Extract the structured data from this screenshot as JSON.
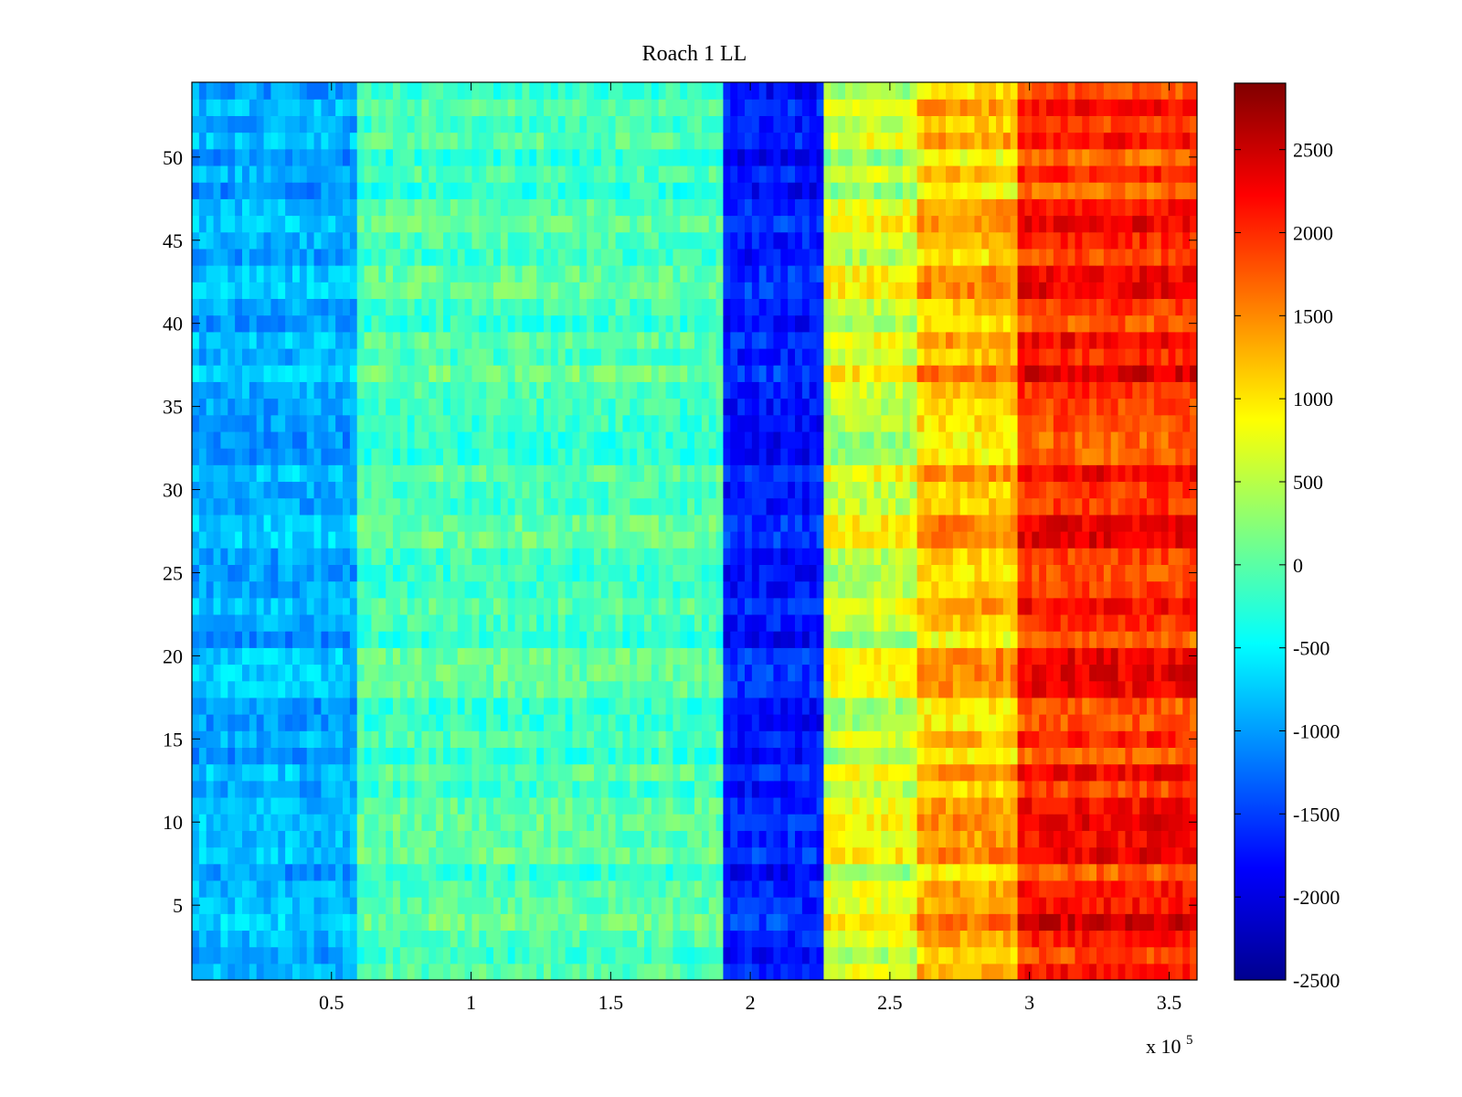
{
  "chart_data": {
    "type": "heatmap",
    "title": "Roach 1 LL",
    "xlabel": "",
    "ylabel": "",
    "x_multiplier_label": "x 10",
    "x_multiplier_exponent": "5",
    "xlim": [
      0,
      3.6
    ],
    "ylim": [
      0.5,
      54.5
    ],
    "x_ticks": [
      0.5,
      1,
      1.5,
      2,
      2.5,
      3,
      3.5
    ],
    "x_tick_labels": [
      "0.5",
      "1",
      "1.5",
      "2",
      "2.5",
      "3",
      "3.5"
    ],
    "y_ticks": [
      5,
      10,
      15,
      20,
      25,
      30,
      35,
      40,
      45,
      50
    ],
    "y_tick_labels": [
      "5",
      "10",
      "15",
      "20",
      "25",
      "30",
      "35",
      "40",
      "45",
      "50"
    ],
    "rows": 54,
    "colorbar": {
      "colormap": "jet",
      "clim": [
        -2500,
        2900
      ],
      "ticks": [
        -2500,
        -2000,
        -1500,
        -1000,
        -500,
        0,
        500,
        1000,
        1500,
        2000,
        2500
      ],
      "tick_labels": [
        "-2500",
        "-2000",
        "-1500",
        "-1000",
        "-500",
        "0",
        "500",
        "1000",
        "1500",
        "2000",
        "2500"
      ]
    },
    "segments": [
      {
        "x_range": [
          0,
          0.58
        ],
        "mean_value": -900
      },
      {
        "x_range": [
          0.58,
          1.9
        ],
        "mean_value": -100
      },
      {
        "x_range": [
          1.9,
          2.27
        ],
        "mean_value": -1700
      },
      {
        "x_range": [
          2.27,
          2.6
        ],
        "mean_value": 600
      },
      {
        "x_range": [
          2.6,
          2.95
        ],
        "mean_value": 1200
      },
      {
        "x_range": [
          2.95,
          3.6
        ],
        "mean_value": 2000
      }
    ]
  }
}
